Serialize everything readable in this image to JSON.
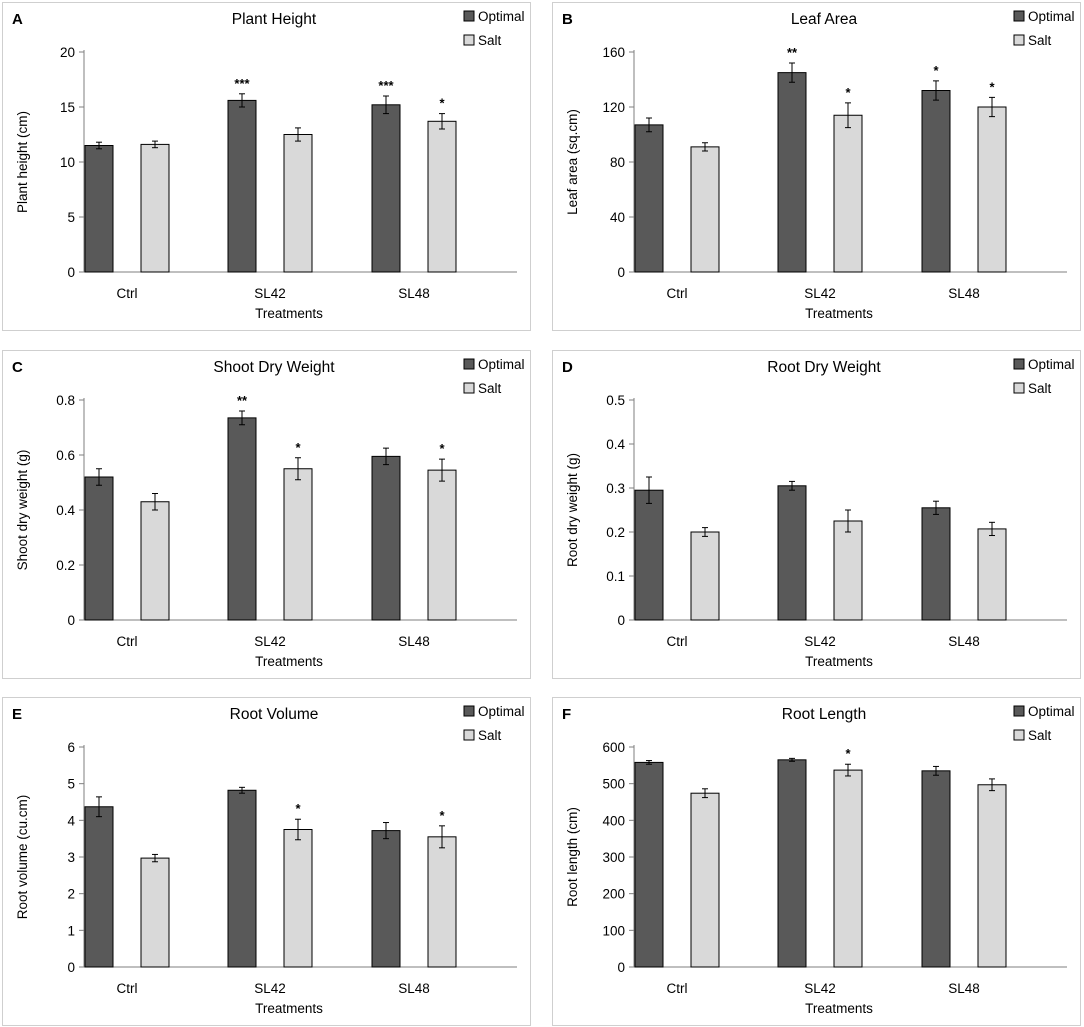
{
  "colors": {
    "optimal": "#595959",
    "salt": "#d9d9d9"
  },
  "chart_data": [
    {
      "panel": "A",
      "type": "bar",
      "title": "Plant Height",
      "xlabel": "Treatments",
      "ylabel": "Plant height (cm)",
      "categories": [
        "Ctrl",
        "SL42",
        "SL48"
      ],
      "ylim": [
        0,
        20
      ],
      "yticks": [
        "0",
        "5",
        "10",
        "15",
        "20"
      ],
      "ystep": 5,
      "legend": [
        "Optimal",
        "Salt"
      ],
      "legend_position": "top-right",
      "series": [
        {
          "name": "Optimal",
          "values": [
            11.5,
            15.6,
            15.2
          ],
          "errors": [
            0.3,
            0.6,
            0.8
          ],
          "sig": [
            "",
            "***",
            "***"
          ]
        },
        {
          "name": "Salt",
          "values": [
            11.6,
            12.5,
            13.7
          ],
          "errors": [
            0.3,
            0.6,
            0.7
          ],
          "sig": [
            "",
            "",
            "*"
          ]
        }
      ]
    },
    {
      "panel": "B",
      "type": "bar",
      "title": "Leaf Area",
      "xlabel": "Treatments",
      "ylabel": "Leaf area (sq.cm)",
      "categories": [
        "Ctrl",
        "SL42",
        "SL48"
      ],
      "ylim": [
        0,
        160
      ],
      "yticks": [
        "0",
        "40",
        "80",
        "120",
        "160"
      ],
      "ystep": 40,
      "legend": [
        "Optimal",
        "Salt"
      ],
      "legend_position": "top-right",
      "series": [
        {
          "name": "Optimal",
          "values": [
            107,
            145,
            132
          ],
          "errors": [
            5,
            7,
            7
          ],
          "sig": [
            "",
            "**",
            "*"
          ]
        },
        {
          "name": "Salt",
          "values": [
            91,
            114,
            120
          ],
          "errors": [
            3,
            9,
            7
          ],
          "sig": [
            "",
            "*",
            "*"
          ]
        }
      ]
    },
    {
      "panel": "C",
      "type": "bar",
      "title": "Shoot Dry Weight",
      "xlabel": "Treatments",
      "ylabel": "Shoot dry weight (g)",
      "categories": [
        "Ctrl",
        "SL42",
        "SL48"
      ],
      "ylim": [
        0,
        0.8
      ],
      "yticks": [
        "0",
        "0.2",
        "0.4",
        "0.6",
        "0.8"
      ],
      "ystep": 0.2,
      "legend": [
        "Optimal",
        "Salt"
      ],
      "legend_position": "top-right",
      "series": [
        {
          "name": "Optimal",
          "values": [
            0.52,
            0.735,
            0.595
          ],
          "errors": [
            0.03,
            0.025,
            0.03
          ],
          "sig": [
            "",
            "**",
            ""
          ]
        },
        {
          "name": "Salt",
          "values": [
            0.43,
            0.55,
            0.545
          ],
          "errors": [
            0.03,
            0.04,
            0.04
          ],
          "sig": [
            "",
            "*",
            "*"
          ]
        }
      ]
    },
    {
      "panel": "D",
      "type": "bar",
      "title": "Root Dry Weight",
      "xlabel": "Treatments",
      "ylabel": "Root dry weight (g)",
      "categories": [
        "Ctrl",
        "SL42",
        "SL48"
      ],
      "ylim": [
        0,
        0.5
      ],
      "yticks": [
        "0",
        "0.1",
        "0.2",
        "0.3",
        "0.4",
        "0.5"
      ],
      "ystep": 0.1,
      "legend": [
        "Optimal",
        "Salt"
      ],
      "legend_position": "top-right",
      "series": [
        {
          "name": "Optimal",
          "values": [
            0.295,
            0.305,
            0.255
          ],
          "errors": [
            0.03,
            0.01,
            0.015
          ],
          "sig": [
            "",
            "",
            ""
          ]
        },
        {
          "name": "Salt",
          "values": [
            0.2,
            0.225,
            0.207
          ],
          "errors": [
            0.01,
            0.025,
            0.015
          ],
          "sig": [
            "",
            "",
            ""
          ]
        }
      ]
    },
    {
      "panel": "E",
      "type": "bar",
      "title": "Root Volume",
      "xlabel": "Treatments",
      "ylabel": "Root volume (cu.cm)",
      "categories": [
        "Ctrl",
        "SL42",
        "SL48"
      ],
      "ylim": [
        0,
        6
      ],
      "yticks": [
        "0",
        "1",
        "2",
        "3",
        "4",
        "5",
        "6"
      ],
      "ystep": 1,
      "legend": [
        "Optimal",
        "Salt"
      ],
      "legend_position": "top-right",
      "series": [
        {
          "name": "Optimal",
          "values": [
            4.37,
            4.82,
            3.72
          ],
          "errors": [
            0.27,
            0.08,
            0.22
          ],
          "sig": [
            "",
            "",
            ""
          ]
        },
        {
          "name": "Salt",
          "values": [
            2.97,
            3.75,
            3.55
          ],
          "errors": [
            0.1,
            0.28,
            0.3
          ],
          "sig": [
            "",
            "*",
            "*"
          ]
        }
      ]
    },
    {
      "panel": "F",
      "type": "bar",
      "title": "Root Length",
      "xlabel": "Treatments",
      "ylabel": "Root length (cm)",
      "categories": [
        "Ctrl",
        "SL42",
        "SL48"
      ],
      "ylim": [
        0,
        600
      ],
      "yticks": [
        "0",
        "100",
        "200",
        "300",
        "400",
        "500",
        "600"
      ],
      "ystep": 100,
      "legend": [
        "Optimal",
        "Salt"
      ],
      "legend_position": "top-right",
      "series": [
        {
          "name": "Optimal",
          "values": [
            558,
            565,
            535
          ],
          "errors": [
            5,
            4,
            12
          ],
          "sig": [
            "",
            "",
            ""
          ]
        },
        {
          "name": "Salt",
          "values": [
            474,
            537,
            497
          ],
          "errors": [
            12,
            16,
            16
          ],
          "sig": [
            "",
            "*",
            ""
          ]
        }
      ]
    }
  ]
}
